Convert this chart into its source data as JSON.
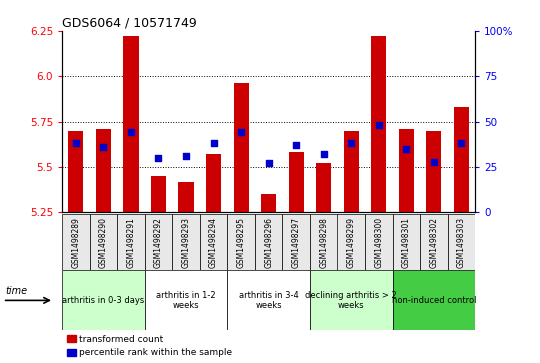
{
  "title": "GDS6064 / 10571749",
  "samples": [
    "GSM1498289",
    "GSM1498290",
    "GSM1498291",
    "GSM1498292",
    "GSM1498293",
    "GSM1498294",
    "GSM1498295",
    "GSM1498296",
    "GSM1498297",
    "GSM1498298",
    "GSM1498299",
    "GSM1498300",
    "GSM1498301",
    "GSM1498302",
    "GSM1498303"
  ],
  "red_values": [
    5.7,
    5.71,
    6.22,
    5.45,
    5.42,
    5.57,
    5.96,
    5.35,
    5.58,
    5.52,
    5.7,
    6.22,
    5.71,
    5.7,
    5.83
  ],
  "blue_values": [
    5.63,
    5.61,
    5.69,
    5.55,
    5.56,
    5.63,
    5.69,
    5.52,
    5.62,
    5.57,
    5.63,
    5.73,
    5.6,
    5.53,
    5.63
  ],
  "ymin": 5.25,
  "ymax": 6.25,
  "y_ticks": [
    5.25,
    5.5,
    5.75,
    6.0,
    6.25
  ],
  "right_ticks": [
    0,
    25,
    50,
    75,
    100
  ],
  "groups": [
    {
      "label": "arthritis in 0-3 days",
      "start": 0,
      "end": 3,
      "color": "#ccffcc"
    },
    {
      "label": "arthritis in 1-2\nweeks",
      "start": 3,
      "end": 6,
      "color": "#ffffff"
    },
    {
      "label": "arthritis in 3-4\nweeks",
      "start": 6,
      "end": 9,
      "color": "#ffffff"
    },
    {
      "label": "declining arthritis > 2\nweeks",
      "start": 9,
      "end": 12,
      "color": "#ccffcc"
    },
    {
      "label": "non-induced control",
      "start": 12,
      "end": 15,
      "color": "#44cc44"
    }
  ],
  "bar_color": "#cc0000",
  "dot_color": "#0000cc",
  "bar_width": 0.55,
  "dot_size": 18,
  "grid_lines": [
    5.5,
    5.75,
    6.0
  ],
  "bg_color": "#e8e8e8"
}
